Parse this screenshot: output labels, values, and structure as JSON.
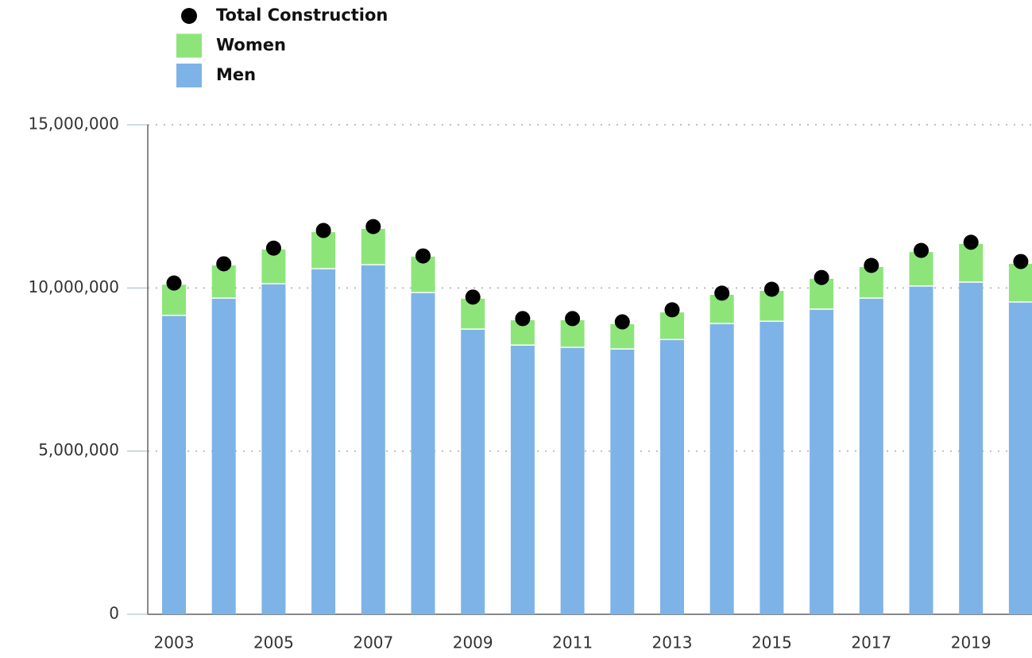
{
  "chart_data": {
    "type": "bar",
    "categories": [
      "2003",
      null,
      "2005",
      null,
      "2007",
      null,
      "2009",
      null,
      "2011",
      null,
      "2013",
      null,
      "2015",
      null,
      "2017",
      null,
      "2019",
      null
    ],
    "series": [
      {
        "name": "Men",
        "color": "#7eb3e8",
        "values": [
          9160000,
          9690000,
          10130000,
          10590000,
          10710000,
          9860000,
          8740000,
          8250000,
          8180000,
          8130000,
          8420000,
          8910000,
          8980000,
          9350000,
          9690000,
          10060000,
          10180000,
          9570000
        ]
      },
      {
        "name": "Women",
        "color": "#8de57a",
        "values": [
          940000,
          1000000,
          1050000,
          1120000,
          1100000,
          1100000,
          930000,
          760000,
          830000,
          760000,
          830000,
          880000,
          930000,
          930000,
          950000,
          1040000,
          1170000,
          1170000
        ]
      },
      {
        "name": "Total Construction",
        "color": "#000000",
        "type": "scatter",
        "values": [
          10150000,
          10740000,
          11220000,
          11760000,
          11880000,
          10980000,
          9720000,
          9060000,
          9060000,
          8960000,
          9330000,
          9840000,
          9960000,
          10320000,
          10690000,
          11150000,
          11400000,
          10810000
        ]
      }
    ],
    "ylim": [
      0,
      15000000
    ],
    "yticks": [
      0,
      {
        "value": 5000000,
        "label": "5,000,000"
      },
      {
        "value": 10000000,
        "label": "10,000,000"
      },
      {
        "value": 15000000,
        "label": "15,000,000"
      }
    ],
    "grid": true
  }
}
